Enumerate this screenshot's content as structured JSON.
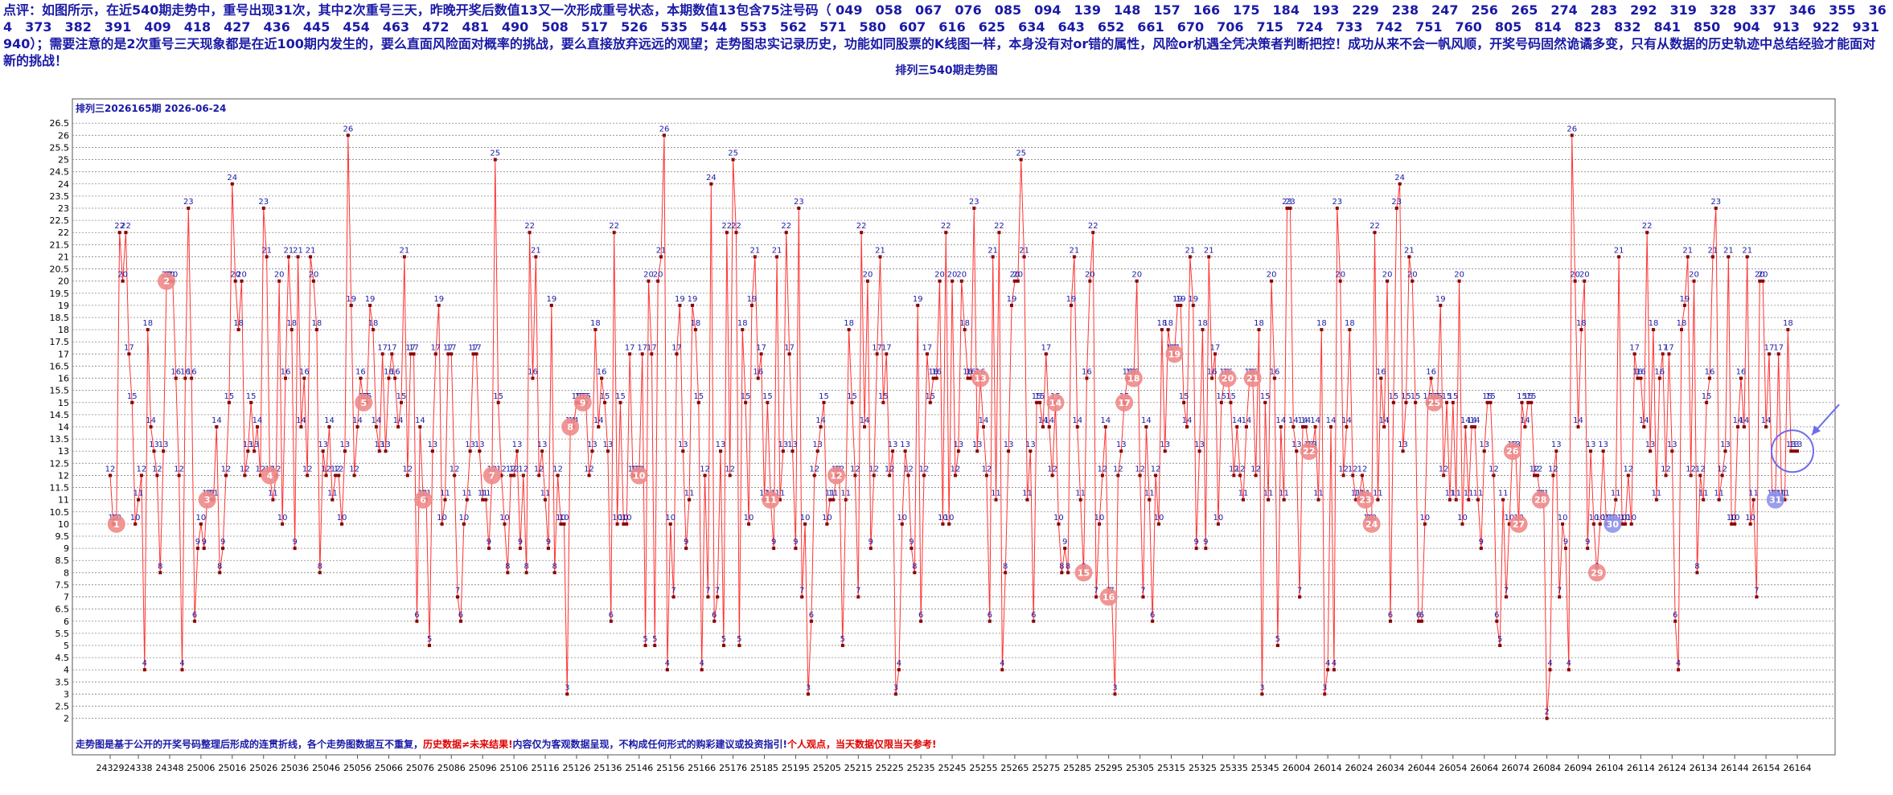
{
  "note": "点评：如图所示，在近540期走势中，重号出现31次，其中2次重号三天，昨晚开奖后数值13又一次形成重号状态，本期数值13包含75注号码（ 049　058　067　076　085　094　139　148　157　166　175　184　193　229　238　247　256　265　274　283　292　319　328　337　346　355　364　373　382　391　409　418　427　436　445　454　463　472　481　490　508　517　526　535　544　553　562　571　580　607　616　625　634　643　652　661　670　706　715　724　733　742　751　760　805　814　823　832　841　850　904　913　922　931　940）；需要注意的是2次重号三天现象都是在近100期内发生的，要么直面风险面对概率的挑战，要么直接放弃远远的观望；走势图忠实记录历史，功能如同股票的K线图一样，本身没有对or错的属性，风险or机遇全凭决策者判断把控！成功从来不会一帆风顺，开奖号码固然诡谲多变，只有从数据的历史轨迹中总结经验才能面对新的挑战！",
  "chart_data": {
    "type": "line",
    "title": "排列三540期走势图",
    "subtitle": "排列三2026165期  2026-06-24",
    "color": "#ff3333",
    "point_color": "#8b0000",
    "label_color": "#1a1aa6",
    "grid": true,
    "ylim": [
      0.5,
      27.5
    ],
    "yticks": [
      2,
      2.5,
      3,
      3.5,
      4,
      4.5,
      5,
      5.5,
      6,
      6.5,
      7,
      7.5,
      8,
      8.5,
      9,
      9.5,
      10,
      10.5,
      11,
      11.5,
      12,
      12.5,
      13,
      13.5,
      14,
      14.5,
      15,
      15.5,
      16,
      16.5,
      17,
      17.5,
      18,
      18.5,
      19,
      19.5,
      20,
      20.5,
      21,
      21.5,
      22,
      22.5,
      23,
      23.5,
      24,
      24.5,
      25,
      25.5,
      26,
      26.5
    ],
    "xlim": [
      0,
      539
    ],
    "xticks": [
      {
        "value": 0,
        "label": "24329"
      },
      {
        "value": 9,
        "label": "24338"
      },
      {
        "value": 19,
        "label": "24348"
      },
      {
        "value": 29,
        "label": "25006"
      },
      {
        "value": 39,
        "label": "25016"
      },
      {
        "value": 49,
        "label": "25026"
      },
      {
        "value": 59,
        "label": "25036"
      },
      {
        "value": 69,
        "label": "25046"
      },
      {
        "value": 79,
        "label": "25056"
      },
      {
        "value": 89,
        "label": "25066"
      },
      {
        "value": 99,
        "label": "25076"
      },
      {
        "value": 109,
        "label": "25086"
      },
      {
        "value": 119,
        "label": "25096"
      },
      {
        "value": 129,
        "label": "25106"
      },
      {
        "value": 139,
        "label": "25116"
      },
      {
        "value": 149,
        "label": "25126"
      },
      {
        "value": 159,
        "label": "25136"
      },
      {
        "value": 169,
        "label": "25146"
      },
      {
        "value": 179,
        "label": "25156"
      },
      {
        "value": 189,
        "label": "25166"
      },
      {
        "value": 199,
        "label": "25176"
      },
      {
        "value": 209,
        "label": "25185"
      },
      {
        "value": 219,
        "label": "25195"
      },
      {
        "value": 229,
        "label": "25205"
      },
      {
        "value": 239,
        "label": "25215"
      },
      {
        "value": 249,
        "label": "25225"
      },
      {
        "value": 259,
        "label": "25235"
      },
      {
        "value": 269,
        "label": "25245"
      },
      {
        "value": 279,
        "label": "25255"
      },
      {
        "value": 289,
        "label": "25265"
      },
      {
        "value": 299,
        "label": "25275"
      },
      {
        "value": 309,
        "label": "25285"
      },
      {
        "value": 319,
        "label": "25295"
      },
      {
        "value": 329,
        "label": "25305"
      },
      {
        "value": 339,
        "label": "25315"
      },
      {
        "value": 349,
        "label": "25325"
      },
      {
        "value": 359,
        "label": "25335"
      },
      {
        "value": 369,
        "label": "25345"
      },
      {
        "value": 379,
        "label": "26004"
      },
      {
        "value": 389,
        "label": "26014"
      },
      {
        "value": 399,
        "label": "26024"
      },
      {
        "value": 409,
        "label": "26034"
      },
      {
        "value": 419,
        "label": "26044"
      },
      {
        "value": 429,
        "label": "26054"
      },
      {
        "value": 439,
        "label": "26064"
      },
      {
        "value": 449,
        "label": "26074"
      },
      {
        "value": 459,
        "label": "26084"
      },
      {
        "value": 469,
        "label": "26094"
      },
      {
        "value": 479,
        "label": "26104"
      },
      {
        "value": 489,
        "label": "26114"
      },
      {
        "value": 499,
        "label": "26124"
      },
      {
        "value": 509,
        "label": "26134"
      },
      {
        "value": 519,
        "label": "26144"
      },
      {
        "value": 529,
        "label": "26154"
      },
      {
        "value": 539,
        "label": "26164"
      }
    ],
    "values": [
      12,
      10,
      10,
      22,
      20,
      22,
      17,
      15,
      10,
      11,
      12,
      4,
      18,
      14,
      13,
      12,
      8,
      13,
      20,
      20,
      20,
      16,
      12,
      4,
      16,
      23,
      16,
      6,
      9,
      10,
      9,
      11,
      11,
      11,
      14,
      8,
      9,
      12,
      15,
      24,
      20,
      18,
      20,
      12,
      13,
      15,
      13,
      14,
      12,
      23,
      21,
      12,
      11,
      12,
      20,
      10,
      16,
      21,
      18,
      9,
      21,
      14,
      16,
      12,
      21,
      20,
      18,
      8,
      13,
      12,
      14,
      11,
      12,
      12,
      10,
      13,
      26,
      19,
      12,
      14,
      16,
      15,
      15,
      19,
      18,
      14,
      13,
      17,
      13,
      16,
      17,
      16,
      14,
      15,
      21,
      12,
      17,
      17,
      6,
      14,
      11,
      11,
      5,
      13,
      17,
      19,
      10,
      11,
      17,
      17,
      12,
      7,
      6,
      10,
      11,
      13,
      17,
      17,
      13,
      11,
      11,
      9,
      12,
      25,
      15,
      12,
      10,
      8,
      12,
      12,
      13,
      9,
      12,
      8,
      22,
      16,
      21,
      12,
      13,
      11,
      9,
      19,
      8,
      12,
      10,
      10,
      3,
      14,
      14,
      15,
      15,
      15,
      15,
      12,
      13,
      18,
      14,
      16,
      15,
      13,
      6,
      22,
      10,
      15,
      10,
      10,
      17,
      12,
      12,
      12,
      17,
      5,
      20,
      17,
      5,
      20,
      21,
      26,
      4,
      10,
      7,
      17,
      19,
      13,
      9,
      11,
      19,
      18,
      15,
      4,
      12,
      7,
      24,
      6,
      7,
      13,
      5,
      22,
      12,
      25,
      22,
      5,
      18,
      15,
      10,
      19,
      21,
      16,
      17,
      11,
      15,
      11,
      9,
      21,
      11,
      13,
      22,
      17,
      13,
      9,
      23,
      7,
      10,
      3,
      6,
      12,
      13,
      14,
      15,
      10,
      11,
      11,
      12,
      12,
      5,
      11,
      18,
      15,
      12,
      7,
      22,
      14,
      20,
      9,
      12,
      17,
      21,
      15,
      17,
      12,
      13,
      3,
      4,
      10,
      13,
      12,
      9,
      8,
      19,
      6,
      12,
      17,
      15,
      16,
      16,
      20,
      10,
      22,
      10,
      20,
      12,
      13,
      20,
      18,
      16,
      16,
      23,
      13,
      16,
      14,
      12,
      6,
      21,
      11,
      22,
      4,
      8,
      13,
      19,
      20,
      20,
      25,
      21,
      11,
      13,
      6,
      15,
      15,
      14,
      17,
      14,
      12,
      15,
      10,
      8,
      9,
      8,
      19,
      21,
      14,
      11,
      8,
      16,
      20,
      22,
      7,
      10,
      12,
      14,
      7,
      7,
      3,
      12,
      13,
      15,
      16,
      16,
      16,
      20,
      12,
      7,
      14,
      11,
      6,
      12,
      10,
      18,
      13,
      18,
      17,
      17,
      19,
      19,
      15,
      14,
      21,
      19,
      9,
      13,
      18,
      9,
      21,
      16,
      17,
      10,
      15,
      16,
      16,
      15,
      12,
      14,
      12,
      11,
      14,
      16,
      16,
      12,
      18,
      3,
      15,
      11,
      20,
      16,
      5,
      14,
      11,
      23,
      23,
      14,
      13,
      7,
      14,
      14,
      13,
      13,
      14,
      11,
      18,
      3,
      4,
      14,
      4,
      23,
      20,
      12,
      14,
      18,
      12,
      11,
      11,
      12,
      11,
      10,
      10,
      22,
      11,
      16,
      14,
      20,
      6,
      15,
      23,
      24,
      13,
      15,
      21,
      20,
      15,
      6,
      6,
      10,
      15,
      16,
      15,
      15,
      19,
      12,
      15,
      11,
      15,
      11,
      20,
      10,
      14,
      11,
      14,
      14,
      11,
      9,
      13,
      15,
      15,
      12,
      6,
      5,
      11,
      7,
      10,
      13,
      13,
      10,
      15,
      14,
      15,
      15,
      12,
      12,
      11,
      11,
      2,
      4,
      12,
      13,
      7,
      10,
      9,
      4,
      26,
      20,
      14,
      18,
      20,
      9,
      13,
      10,
      8,
      10,
      13,
      10,
      10,
      10,
      11,
      21,
      10,
      10,
      12,
      10,
      17,
      16,
      16,
      14,
      22,
      13,
      18,
      11,
      16,
      17,
      12,
      17,
      13,
      6,
      4,
      18,
      19,
      21,
      12,
      20,
      8,
      12,
      11,
      15,
      16,
      21,
      23,
      11,
      12,
      13,
      21,
      10,
      10,
      14,
      16,
      14,
      21,
      10,
      11,
      7,
      20,
      20,
      14,
      17,
      11,
      11,
      17,
      11,
      11,
      18,
      13,
      13,
      13
    ],
    "repeat_marks": [
      {
        "x": 2,
        "n": 1,
        "color": "#f08a8a"
      },
      {
        "x": 18,
        "n": 2,
        "color": "#f08a8a"
      },
      {
        "x": 31,
        "n": 3,
        "color": "#f08a8a"
      },
      {
        "x": 51,
        "n": 4,
        "color": "#f08a8a"
      },
      {
        "x": 81,
        "n": 5,
        "color": "#f08a8a"
      },
      {
        "x": 100,
        "n": 6,
        "color": "#f08a8a"
      },
      {
        "x": 122,
        "n": 7,
        "color": "#f08a8a"
      },
      {
        "x": 147,
        "n": 8,
        "color": "#f08a8a"
      },
      {
        "x": 151,
        "n": 9,
        "color": "#f08a8a"
      },
      {
        "x": 169,
        "n": 10,
        "color": "#f08a8a"
      },
      {
        "x": 211,
        "n": 11,
        "color": "#f08a8a"
      },
      {
        "x": 232,
        "n": 12,
        "color": "#f08a8a"
      },
      {
        "x": 278,
        "n": 13,
        "color": "#f08a8a"
      },
      {
        "x": 302,
        "n": 14,
        "color": "#f08a8a"
      },
      {
        "x": 311,
        "n": 15,
        "color": "#f08a8a"
      },
      {
        "x": 319,
        "n": 16,
        "color": "#f08a8a"
      },
      {
        "x": 324,
        "n": 17,
        "color": "#f08a8a"
      },
      {
        "x": 327,
        "n": 18,
        "color": "#f08a8a"
      },
      {
        "x": 340,
        "n": 19,
        "color": "#f08a8a"
      },
      {
        "x": 357,
        "n": 20,
        "color": "#f08a8a"
      },
      {
        "x": 365,
        "n": 21,
        "color": "#f08a8a"
      },
      {
        "x": 383,
        "n": 22,
        "color": "#f08a8a"
      },
      {
        "x": 401,
        "n": 23,
        "color": "#f08a8a"
      },
      {
        "x": 403,
        "n": 24,
        "color": "#f08a8a"
      },
      {
        "x": 423,
        "n": 25,
        "color": "#f08a8a"
      },
      {
        "x": 448,
        "n": 26,
        "color": "#f08a8a"
      },
      {
        "x": 450,
        "n": 27,
        "color": "#f08a8a"
      },
      {
        "x": 457,
        "n": 28,
        "color": "#f08a8a"
      },
      {
        "x": 475,
        "n": 29,
        "color": "#f08a8a"
      },
      {
        "x": 480,
        "n": 30,
        "color": "#8f93ea"
      },
      {
        "x": 532,
        "n": 31,
        "color": "#8f93ea"
      }
    ],
    "footer": [
      {
        "text": "走势图是基于公开的开奖号码整理后形成的连贯折线，各个走势图数据互不重复，",
        "color": "#1a1aa6"
      },
      {
        "text": "历史数据≠未来结果!",
        "color": "#e00000"
      },
      {
        "text": "内容仅为客观数据呈现，不构成任何形式的购彩建议或投资指引!",
        "color": "#1a1aa6"
      },
      {
        "text": "个人观点，当天数据仅限当天参考!",
        "color": "#e00000"
      }
    ]
  }
}
